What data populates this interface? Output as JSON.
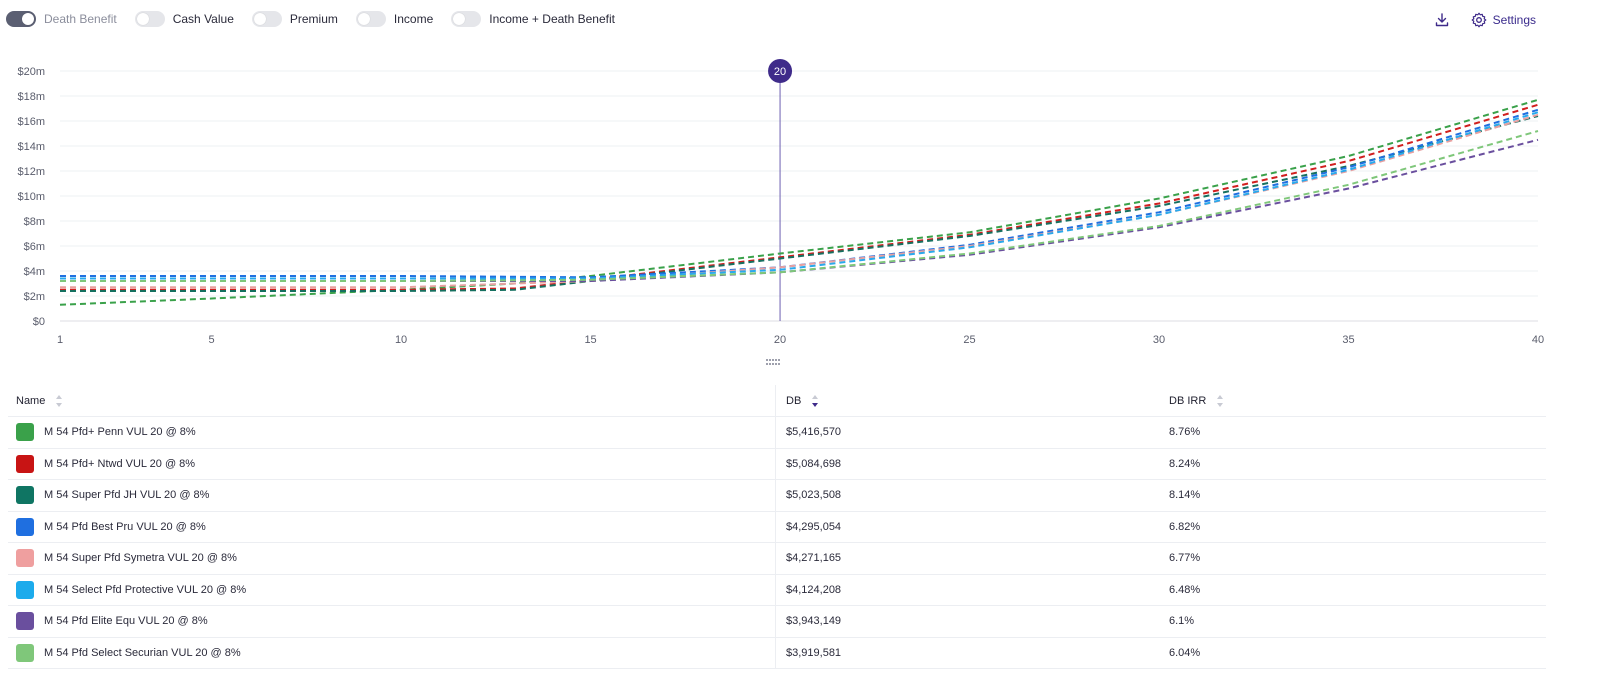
{
  "toggles": [
    {
      "label": "Death Benefit",
      "on": true
    },
    {
      "label": "Cash Value",
      "on": false
    },
    {
      "label": "Premium",
      "on": false
    },
    {
      "label": "Income",
      "on": false
    },
    {
      "label": "Income + Death Benefit",
      "on": false
    }
  ],
  "actions": {
    "download_icon": "download-icon",
    "settings_label": "Settings",
    "settings_icon": "gear-icon"
  },
  "colors": {
    "accent": "#3f2b8a",
    "marker_line": "#6c5fb0"
  },
  "chart_data": {
    "type": "line",
    "x_ticks": [
      1,
      5,
      10,
      15,
      20,
      25,
      30,
      35,
      40
    ],
    "xlim": [
      1,
      40
    ],
    "ylim": [
      0,
      20
    ],
    "y_ticks": [
      "$0",
      "$2m",
      "$4m",
      "$6m",
      "$8m",
      "$10m",
      "$12m",
      "$14m",
      "$16m",
      "$18m",
      "$20m"
    ],
    "marker": {
      "x": 20,
      "label": "20"
    },
    "grid": true,
    "series": [
      {
        "name": "M 54 Pfd+ Penn VUL 20 @ 8%",
        "color": "#3aa14a",
        "x": [
          1,
          5,
          10,
          13,
          15,
          20,
          25,
          30,
          35,
          40
        ],
        "y": [
          1.3,
          1.8,
          2.5,
          3.0,
          3.6,
          5.4,
          7.1,
          9.8,
          13.2,
          17.7
        ]
      },
      {
        "name": "M 54 Pfd+ Ntwd VUL 20 @ 8%",
        "color": "#d11f1f",
        "x": [
          1,
          5,
          10,
          13,
          15,
          20,
          25,
          30,
          35,
          40
        ],
        "y": [
          2.5,
          2.5,
          2.5,
          2.6,
          3.3,
          5.1,
          6.9,
          9.4,
          12.8,
          17.3
        ]
      },
      {
        "name": "M 54 Super Pfd JH VUL 20 @ 8%",
        "color": "#157060",
        "x": [
          1,
          5,
          10,
          13,
          15,
          20,
          25,
          30,
          35,
          40
        ],
        "y": [
          2.4,
          2.4,
          2.4,
          2.5,
          3.2,
          5.0,
          6.8,
          9.2,
          12.4,
          16.4
        ]
      },
      {
        "name": "M 54 Pfd Best Pru VUL 20 @ 8%",
        "color": "#1f6fe0",
        "x": [
          1,
          5,
          10,
          15,
          20,
          25,
          30,
          35,
          40
        ],
        "y": [
          3.6,
          3.6,
          3.6,
          3.5,
          4.3,
          6.1,
          8.7,
          12.3,
          16.9
        ]
      },
      {
        "name": "M 54 Super Pfd Symetra VUL 20 @ 8%",
        "color": "#e8a0a0",
        "x": [
          1,
          5,
          10,
          15,
          20,
          25,
          30,
          35,
          40
        ],
        "y": [
          2.7,
          2.7,
          2.7,
          3.2,
          4.3,
          6.0,
          8.5,
          12.0,
          16.5
        ]
      },
      {
        "name": "M 54 Select Pfd Protective VUL 20 @ 8%",
        "color": "#29a9ec",
        "x": [
          1,
          5,
          10,
          15,
          20,
          25,
          30,
          35,
          40
        ],
        "y": [
          3.4,
          3.4,
          3.4,
          3.4,
          4.1,
          5.9,
          8.5,
          12.1,
          16.7
        ]
      },
      {
        "name": "M 54 Pfd Elite Equ VUL 20 @ 8%",
        "color": "#6a4f9e",
        "x": [
          1,
          5,
          10,
          15,
          20,
          25,
          30,
          35,
          40
        ],
        "y": [
          3.2,
          3.2,
          3.2,
          3.2,
          3.9,
          5.3,
          7.5,
          10.6,
          14.5
        ]
      },
      {
        "name": "M 54 Pfd Select Securian VUL 20 @ 8%",
        "color": "#7fc77a",
        "x": [
          1,
          5,
          10,
          15,
          20,
          25,
          30,
          35,
          40
        ],
        "y": [
          3.2,
          3.2,
          3.2,
          3.3,
          3.9,
          5.4,
          7.6,
          10.9,
          15.2
        ]
      }
    ]
  },
  "table": {
    "headers": {
      "name": "Name",
      "db": "DB",
      "irr": "DB IRR"
    },
    "rows": [
      {
        "name": "M 54 Pfd+ Penn VUL 20 @ 8%",
        "color": "#3aa14a",
        "db": "$5,416,570",
        "irr": "8.76%"
      },
      {
        "name": "M 54 Pfd+ Ntwd VUL 20 @ 8%",
        "color": "#c81414",
        "db": "$5,084,698",
        "irr": "8.24%"
      },
      {
        "name": "M 54 Super Pfd JH VUL 20 @ 8%",
        "color": "#0f7563",
        "db": "$5,023,508",
        "irr": "8.14%"
      },
      {
        "name": "M 54 Pfd Best Pru VUL 20 @ 8%",
        "color": "#1f6fe0",
        "db": "$4,295,054",
        "irr": "6.82%"
      },
      {
        "name": "M 54 Super Pfd Symetra VUL 20 @ 8%",
        "color": "#ef9f9f",
        "db": "$4,271,165",
        "irr": "6.77%"
      },
      {
        "name": "M 54 Select Pfd Protective VUL 20 @ 8%",
        "color": "#1cabec",
        "db": "$4,124,208",
        "irr": "6.48%"
      },
      {
        "name": "M 54 Pfd Elite Equ VUL 20 @ 8%",
        "color": "#6a4f9e",
        "db": "$3,943,149",
        "irr": "6.1%"
      },
      {
        "name": "M 54 Pfd Select Securian VUL 20 @ 8%",
        "color": "#7fc77a",
        "db": "$3,919,581",
        "irr": "6.04%"
      }
    ]
  }
}
